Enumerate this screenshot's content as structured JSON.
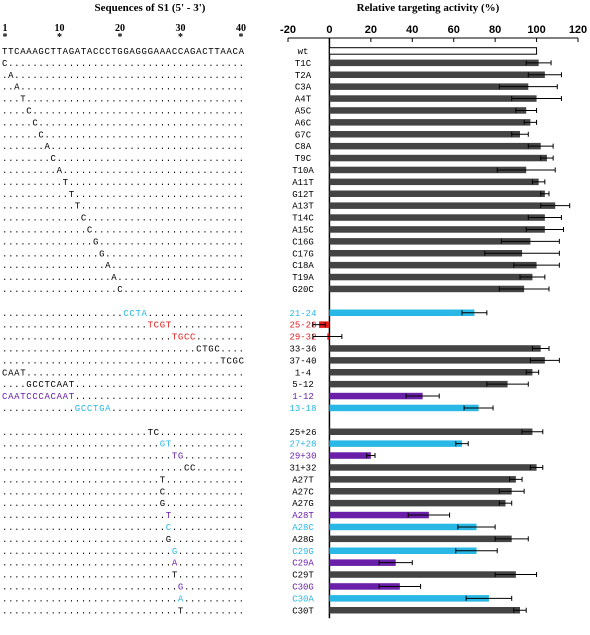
{
  "left_panel": {
    "title": "Sequences of S1 (5' - 3')",
    "positions": [
      "1",
      "10",
      "20",
      "30",
      "40"
    ],
    "star": "*"
  },
  "chart_data": {
    "type": "bar",
    "orientation": "horizontal",
    "title": "Relative targeting activity (%)",
    "xlim": [
      -20,
      120
    ],
    "xticks": [
      "-20",
      "0",
      "20",
      "40",
      "60",
      "80",
      "100",
      "120"
    ],
    "colors": {
      "gray": "#444444",
      "blue": "#29b8e5",
      "red": "#e01b1b",
      "purple": "#6a1fa8",
      "wt": "#ffffff"
    },
    "rows": [
      {
        "seq": "TTCAAAGCTTAGATACCCTGGAGGGAAACCAGACTTAACA",
        "label": "wt",
        "value": 100,
        "err": 0,
        "color": "wt"
      },
      {
        "seq": "C.......................................",
        "label": "T1C",
        "value": 101,
        "err": 6,
        "color": "gray"
      },
      {
        "seq": ".A......................................",
        "label": "T2A",
        "value": 104,
        "err": 8,
        "color": "gray"
      },
      {
        "seq": "..A.....................................",
        "label": "C3A",
        "value": 96,
        "err": 14,
        "color": "gray"
      },
      {
        "seq": "...T....................................",
        "label": "A4T",
        "value": 100,
        "err": 12,
        "color": "gray"
      },
      {
        "seq": "....C...................................",
        "label": "A5C",
        "value": 95,
        "err": 5,
        "color": "gray"
      },
      {
        "seq": ".....C..................................",
        "label": "A6C",
        "value": 97,
        "err": 3,
        "color": "gray"
      },
      {
        "seq": "......C.................................",
        "label": "G7C",
        "value": 92,
        "err": 4,
        "color": "gray"
      },
      {
        "seq": ".......A................................",
        "label": "C8A",
        "value": 102,
        "err": 6,
        "color": "gray"
      },
      {
        "seq": "........C...............................",
        "label": "T9C",
        "value": 105,
        "err": 3,
        "color": "gray"
      },
      {
        "seq": ".........A..............................",
        "label": "T10A",
        "value": 95,
        "err": 14,
        "color": "gray"
      },
      {
        "seq": "..........T.............................",
        "label": "A11T",
        "value": 101,
        "err": 3,
        "color": "gray"
      },
      {
        "seq": "...........T............................",
        "label": "G12T",
        "value": 104,
        "err": 2,
        "color": "gray"
      },
      {
        "seq": "............T...........................",
        "label": "A13T",
        "value": 109,
        "err": 7,
        "color": "gray"
      },
      {
        "seq": ".............C..........................",
        "label": "T14C",
        "value": 104,
        "err": 8,
        "color": "gray"
      },
      {
        "seq": "..............C.........................",
        "label": "A15C",
        "value": 104,
        "err": 9,
        "color": "gray"
      },
      {
        "seq": "...............G........................",
        "label": "C16G",
        "value": 97,
        "err": 14,
        "color": "gray"
      },
      {
        "seq": "................G.......................",
        "label": "C17G",
        "value": 93,
        "err": 18,
        "color": "gray"
      },
      {
        "seq": ".................A......................",
        "label": "C18A",
        "value": 100,
        "err": 11,
        "color": "gray"
      },
      {
        "seq": "..................A.....................",
        "label": "T19A",
        "value": 98,
        "err": 6,
        "color": "gray"
      },
      {
        "seq": "...................C....................",
        "label": "G20C",
        "value": 94,
        "err": 12,
        "color": "gray"
      },
      {
        "gap": true
      },
      {
        "seq": "....................CCTA................",
        "label": "21-24",
        "value": 70,
        "err": 6,
        "color": "blue"
      },
      {
        "seq": "........................TCGT............",
        "label": "25-28",
        "value": -5,
        "err": 3,
        "color": "red"
      },
      {
        "seq": "............................TGCC........",
        "label": "29-32",
        "value": -1,
        "err": 7,
        "color": "red"
      },
      {
        "seq": "................................CTGC....",
        "label": "33-36",
        "value": 102,
        "err": 4,
        "color": "gray"
      },
      {
        "seq": "....................................TCGC",
        "label": "37-40",
        "value": 104,
        "err": 7,
        "color": "gray"
      },
      {
        "seq": "CAAT....................................",
        "label": "1-4",
        "value": 98,
        "err": 3,
        "color": "gray"
      },
      {
        "seq": "....GCCTCAAT............................",
        "label": "5-12",
        "value": 86,
        "err": 10,
        "color": "gray"
      },
      {
        "seq": "CAATCCCACAAT............................",
        "label": "1-12",
        "value": 45,
        "err": 8,
        "color": "purple"
      },
      {
        "seq": "............GCCTGA......................",
        "label": "13-18",
        "value": 72,
        "err": 7,
        "color": "blue"
      },
      {
        "gap": true
      },
      {
        "seq": "........................TC..............",
        "label": "25+26",
        "value": 98,
        "err": 5,
        "color": "gray"
      },
      {
        "seq": "..........................GT............",
        "label": "27+28",
        "value": 64,
        "err": 3,
        "color": "blue"
      },
      {
        "seq": "............................TG..........",
        "label": "29+30",
        "value": 20,
        "err": 2,
        "color": "purple"
      },
      {
        "seq": "..............................CC........",
        "label": "31+32",
        "value": 100,
        "err": 3,
        "color": "gray"
      },
      {
        "seq": "..........................T.............",
        "label": "A27T",
        "value": 90,
        "err": 3,
        "color": "gray"
      },
      {
        "seq": "..........................C.............",
        "label": "A27C",
        "value": 88,
        "err": 6,
        "color": "gray"
      },
      {
        "seq": "..........................G.............",
        "label": "A27G",
        "value": 85,
        "err": 3,
        "color": "gray"
      },
      {
        "seq": "...........................T............",
        "label": "A28T",
        "value": 48,
        "err": 10,
        "color": "purple"
      },
      {
        "seq": "...........................C............",
        "label": "A28C",
        "value": 71,
        "err": 9,
        "color": "blue"
      },
      {
        "seq": "...........................G............",
        "label": "A28G",
        "value": 88,
        "err": 8,
        "color": "gray"
      },
      {
        "seq": "............................G...........",
        "label": "C29G",
        "value": 71,
        "err": 10,
        "color": "blue"
      },
      {
        "seq": "............................A...........",
        "label": "C29A",
        "value": 32,
        "err": 8,
        "color": "purple"
      },
      {
        "seq": "............................T...........",
        "label": "C29T",
        "value": 90,
        "err": 10,
        "color": "gray"
      },
      {
        "seq": ".............................G..........",
        "label": "C30G",
        "value": 34,
        "err": 10,
        "color": "purple"
      },
      {
        "seq": ".............................A..........",
        "label": "C30A",
        "value": 77,
        "err": 11,
        "color": "blue"
      },
      {
        "seq": ".............................T..........",
        "label": "C30T",
        "value": 92,
        "err": 3,
        "color": "gray"
      }
    ]
  }
}
